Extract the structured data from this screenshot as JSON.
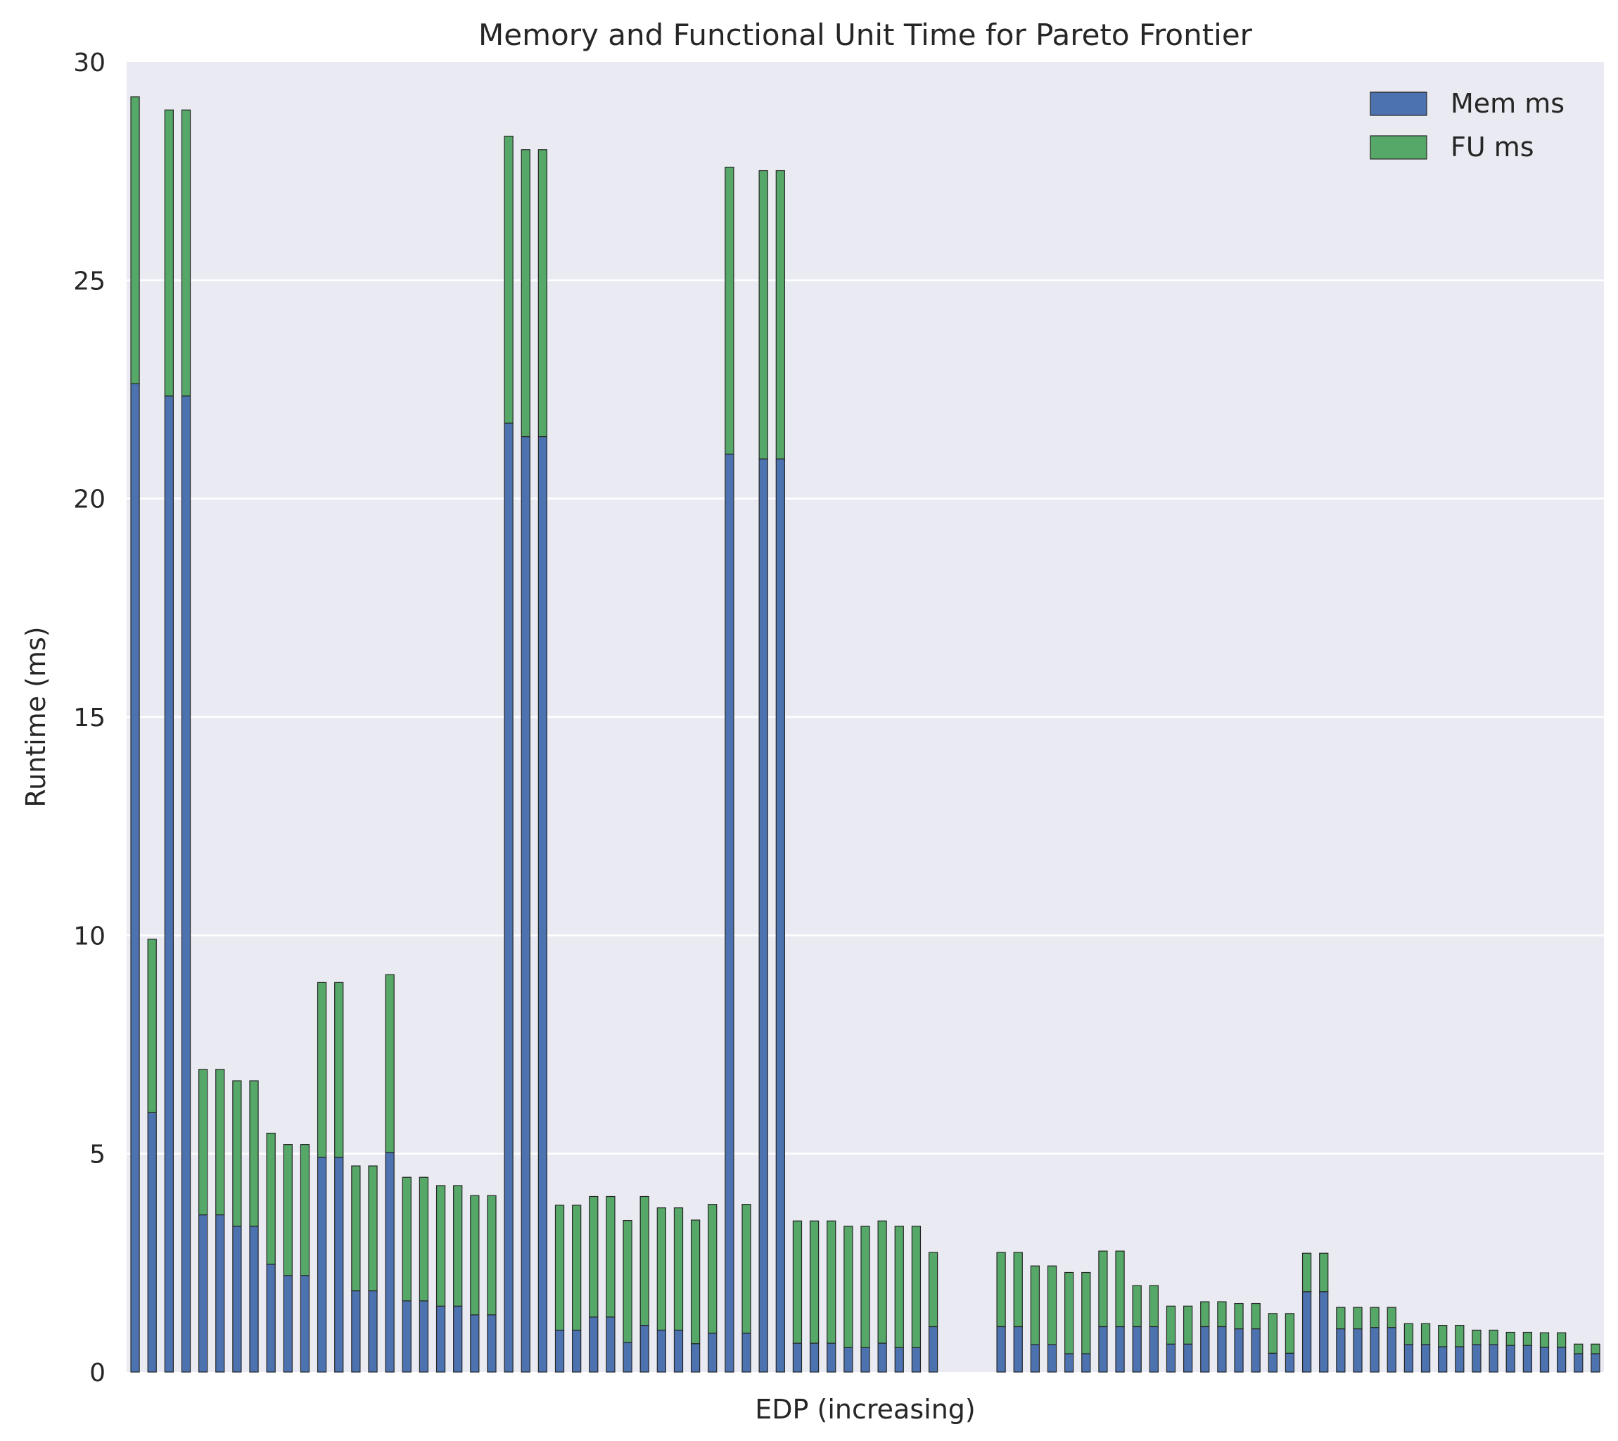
{
  "chart_data": {
    "type": "bar",
    "stacked": true,
    "title": "Memory and Functional Unit Time for Pareto Frontier",
    "xlabel": "EDP (increasing)",
    "ylabel": "Runtime (ms)",
    "ylim": [
      0,
      30
    ],
    "yticks": [
      0,
      5,
      10,
      15,
      20,
      25,
      30
    ],
    "xticks_visible": false,
    "grid": "horizontal",
    "background": "#eaeaf2",
    "legend_position": "top-right",
    "series": [
      {
        "name": "Mem ms",
        "color": "#4c72b0",
        "values": [
          22.63,
          5.94,
          22.35,
          22.35,
          3.6,
          3.6,
          3.34,
          3.34,
          2.47,
          2.21,
          2.21,
          4.92,
          4.92,
          1.86,
          1.86,
          5.03,
          1.63,
          1.63,
          1.51,
          1.51,
          1.31,
          1.31,
          21.73,
          21.42,
          21.42,
          0.96,
          0.96,
          1.26,
          1.26,
          0.68,
          1.07,
          0.96,
          0.96,
          0.65,
          0.89,
          21.02,
          0.89,
          20.91,
          20.91,
          0.66,
          0.66,
          0.66,
          0.56,
          0.56,
          0.66,
          0.56,
          0.56,
          1.04,
          0.0,
          0.0,
          0.0,
          1.04,
          1.04,
          0.63,
          0.63,
          0.42,
          0.42,
          1.04,
          1.04,
          1.04,
          1.04,
          0.64,
          0.64,
          1.04,
          1.04,
          0.99,
          0.99,
          0.43,
          0.43,
          1.84,
          1.84,
          0.99,
          0.99,
          1.02,
          1.02,
          0.63,
          0.63,
          0.58,
          0.58,
          0.63,
          0.63,
          0.61,
          0.61,
          0.57,
          0.57,
          0.42,
          0.42
        ]
      },
      {
        "name": "FU ms",
        "color": "#55a868",
        "values": [
          6.57,
          3.97,
          6.55,
          6.55,
          3.33,
          3.33,
          3.33,
          3.33,
          3.0,
          3.0,
          3.0,
          4.0,
          4.0,
          2.86,
          2.86,
          4.07,
          2.83,
          2.83,
          2.76,
          2.76,
          2.73,
          2.73,
          6.57,
          6.57,
          6.57,
          2.86,
          2.86,
          2.76,
          2.76,
          2.79,
          2.95,
          2.8,
          2.8,
          2.83,
          2.95,
          6.57,
          2.95,
          6.6,
          6.6,
          2.8,
          2.8,
          2.8,
          2.78,
          2.78,
          2.8,
          2.78,
          2.78,
          1.7,
          0.0,
          0.0,
          0.0,
          1.7,
          1.7,
          1.8,
          1.8,
          1.86,
          1.86,
          1.73,
          1.73,
          0.94,
          0.94,
          0.87,
          0.87,
          0.57,
          0.57,
          0.58,
          0.58,
          0.91,
          0.91,
          0.88,
          0.88,
          0.49,
          0.49,
          0.46,
          0.46,
          0.48,
          0.48,
          0.49,
          0.49,
          0.33,
          0.33,
          0.3,
          0.3,
          0.33,
          0.33,
          0.22,
          0.22
        ]
      }
    ]
  }
}
